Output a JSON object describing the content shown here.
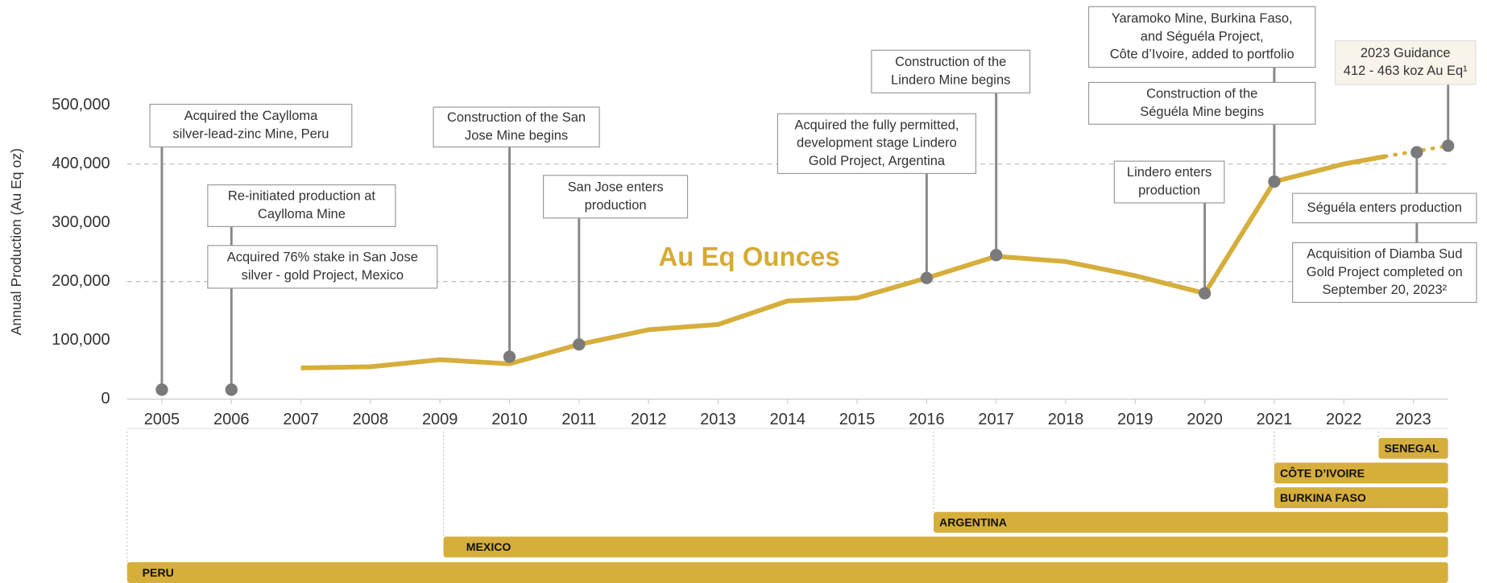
{
  "chart_data": {
    "type": "line",
    "title": "Au Eq Ounces",
    "y_label": "Annual Production (Au Eq oz)",
    "xlim": [
      2004.5,
      2023.5
    ],
    "xticks": [
      2005,
      2006,
      2007,
      2008,
      2009,
      2010,
      2011,
      2012,
      2013,
      2014,
      2015,
      2016,
      2017,
      2018,
      2019,
      2020,
      2021,
      2022,
      2023
    ],
    "ylim": [
      0,
      500000
    ],
    "yticks": [
      0,
      {
        "value": 100000,
        "label": "100,000"
      },
      {
        "value": 200000,
        "label": "200,000"
      },
      {
        "value": 300000,
        "label": "300,000"
      },
      {
        "value": 400000,
        "label": "400,000"
      },
      {
        "value": 500000,
        "label": "500,000"
      }
    ],
    "grid_values": [
      200000,
      400000
    ],
    "series": [
      {
        "name": "Au Eq Ounces",
        "color": "#d6ae3c",
        "style": "solid",
        "x": [
          2007,
          2008,
          2009,
          2010,
          2011,
          2012,
          2013,
          2014,
          2015,
          2016,
          2017,
          2018,
          2019,
          2020,
          2021,
          2022,
          2022.6
        ],
        "values": [
          53000,
          55000,
          67000,
          60000,
          93000,
          118000,
          127000,
          167000,
          172000,
          206000,
          243000,
          234000,
          210000,
          180000,
          370000,
          400000,
          413000
        ]
      },
      {
        "color": "#d6ae3c",
        "style": "dotted",
        "x": [
          2022.6,
          2023.5
        ],
        "values": [
          413000,
          431000
        ]
      }
    ],
    "events": [
      {
        "x": 2005,
        "y": 16000,
        "boxes": [
          [
            "Acquired the Caylloma",
            "silver-lead-zinc Mine, Peru"
          ]
        ]
      },
      {
        "x": 2006,
        "y": 16000,
        "boxes": [
          [
            "Re-initiated production at",
            "Caylloma Mine"
          ],
          [
            "Acquired 76% stake in San Jose",
            "silver - gold Project, Mexico"
          ]
        ]
      },
      {
        "x": 2010,
        "y": 72000,
        "boxes": [
          [
            "Construction of the San",
            "Jose Mine begins"
          ]
        ]
      },
      {
        "x": 2011,
        "y": 93000,
        "boxes": [
          [
            "San Jose enters",
            "production"
          ]
        ]
      },
      {
        "x": 2016,
        "y": 206000,
        "boxes": [
          [
            "Acquired the fully permitted,",
            "development stage Lindero",
            "Gold Project, Argentina"
          ]
        ]
      },
      {
        "x": 2017,
        "y": 245000,
        "boxes": [
          [
            "Construction of the",
            "Lindero Mine begins"
          ]
        ]
      },
      {
        "x": 2020,
        "y": 180000,
        "boxes": [
          [
            "Lindero enters",
            "production"
          ]
        ]
      },
      {
        "x": 2021,
        "y": 370000,
        "boxes": [
          [
            "Yaramoko Mine, Burkina Faso,",
            "and Séguéla Project,",
            "Côte d’Ivoire, added to portfolio"
          ],
          [
            "Construction of the",
            "Séguéla Mine begins"
          ]
        ]
      },
      {
        "x": 2023.05,
        "y": 420000,
        "boxes": [
          [
            "Séguéla enters production"
          ],
          [
            "Acquisition of Diamba Sud",
            "Gold Project completed on",
            "September 20, 2023²"
          ]
        ]
      },
      {
        "x": 2023.5,
        "y": 431000,
        "boxes": [
          [
            "2023 Guidance",
            "412 - 463 koz Au Eq¹"
          ]
        ]
      }
    ],
    "regions": [
      {
        "name": "SENEGAL",
        "start": 2022.5,
        "end": 2023.5
      },
      {
        "name": "CÔTE D’IVOIRE",
        "start": 2021,
        "end": 2023.5
      },
      {
        "name": "BURKINA FASO",
        "start": 2021,
        "end": 2023.5
      },
      {
        "name": "ARGENTINA",
        "start": 2016.1,
        "end": 2023.5
      },
      {
        "name": "MEXICO",
        "start": 2009.05,
        "end": 2023.5
      },
      {
        "name": "PERU",
        "start": 2004.5,
        "end": 2023.5
      }
    ]
  }
}
